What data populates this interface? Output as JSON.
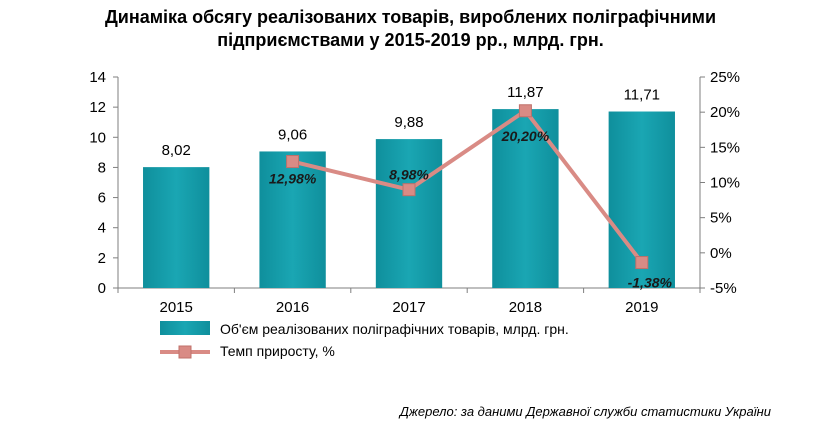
{
  "title_line1": "Динаміка обсягу реалізованих товарів, вироблених поліграфічними",
  "title_line2": "підприємствами у 2015-2019 рр., млрд. грн.",
  "source": "Джерело: за даними Державної служби статистики України",
  "chart_data": {
    "type": "bar",
    "categories": [
      "2015",
      "2016",
      "2017",
      "2018",
      "2019"
    ],
    "series": [
      {
        "name": "Об'єм реалізованих поліграфічних товарів, млрд. грн.",
        "type": "bar",
        "axis": "left",
        "color": "#1aa6b3",
        "values": [
          8.02,
          9.06,
          9.88,
          11.87,
          11.71
        ],
        "labels": [
          "8,02",
          "9,06",
          "9,88",
          "11,87",
          "11,71"
        ]
      },
      {
        "name": "Темп приросту, %",
        "type": "line",
        "axis": "right",
        "color": "#d98b85",
        "values": [
          null,
          12.98,
          8.98,
          20.2,
          -1.38
        ],
        "labels": [
          "",
          "12,98%",
          "8,98%",
          "20,20%",
          "-1,38%"
        ]
      }
    ],
    "y_left": {
      "min": 0,
      "max": 14,
      "ticks": [
        "0",
        "2",
        "4",
        "6",
        "8",
        "10",
        "12",
        "14"
      ]
    },
    "y_right": {
      "min": -5,
      "max": 25,
      "ticks": [
        "-5%",
        "0%",
        "5%",
        "10%",
        "15%",
        "20%",
        "25%"
      ]
    },
    "grid": false,
    "legend_position": "bottom-left"
  }
}
